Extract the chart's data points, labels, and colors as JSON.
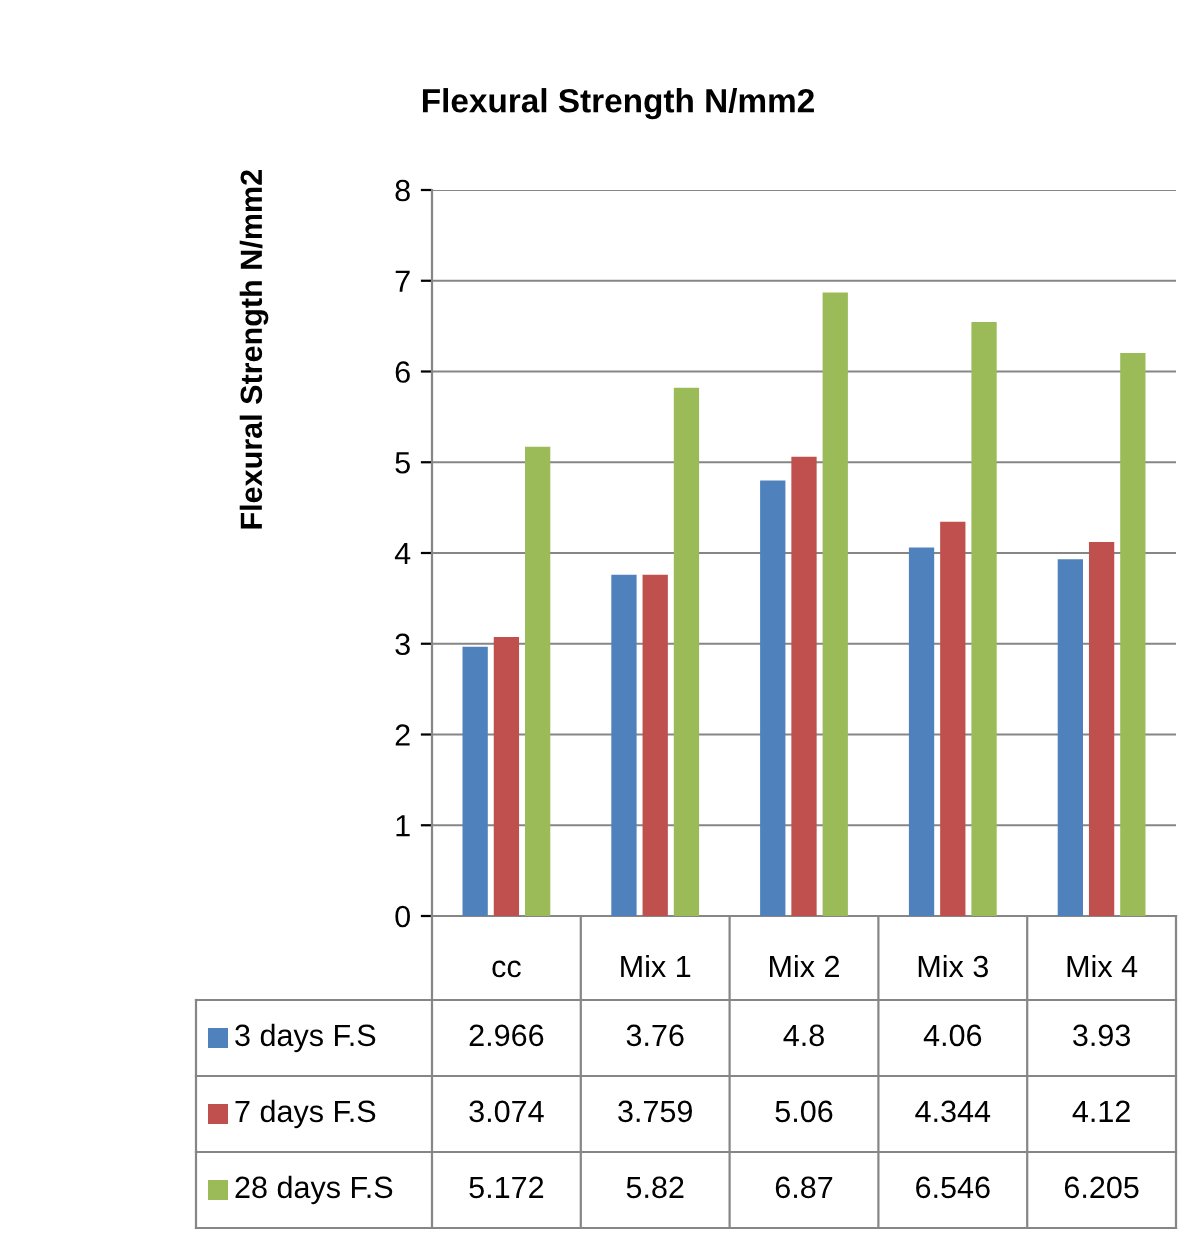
{
  "chart_data": {
    "type": "bar",
    "title": "Flexural Strength N/mm2",
    "ylabel": "Flexural Strength N/mm2",
    "categories": [
      "cc",
      "Mix 1",
      "Mix 2",
      "Mix 3",
      "Mix 4"
    ],
    "series": [
      {
        "name": "3 days F.S",
        "color": "#4f81bd",
        "values": [
          2.966,
          3.76,
          4.8,
          4.06,
          3.93
        ]
      },
      {
        "name": "7 days F.S",
        "color": "#c0504d",
        "values": [
          3.074,
          3.759,
          5.06,
          4.344,
          4.12
        ]
      },
      {
        "name": "28 days F.S",
        "color": "#9bbb59",
        "values": [
          5.172,
          5.82,
          6.87,
          6.546,
          6.205
        ]
      }
    ],
    "ylim": [
      0,
      8
    ],
    "yticks": [
      0,
      1,
      2,
      3,
      4,
      5,
      6,
      7,
      8
    ],
    "grid": "y",
    "data_labels": true,
    "legend": "bottom"
  }
}
